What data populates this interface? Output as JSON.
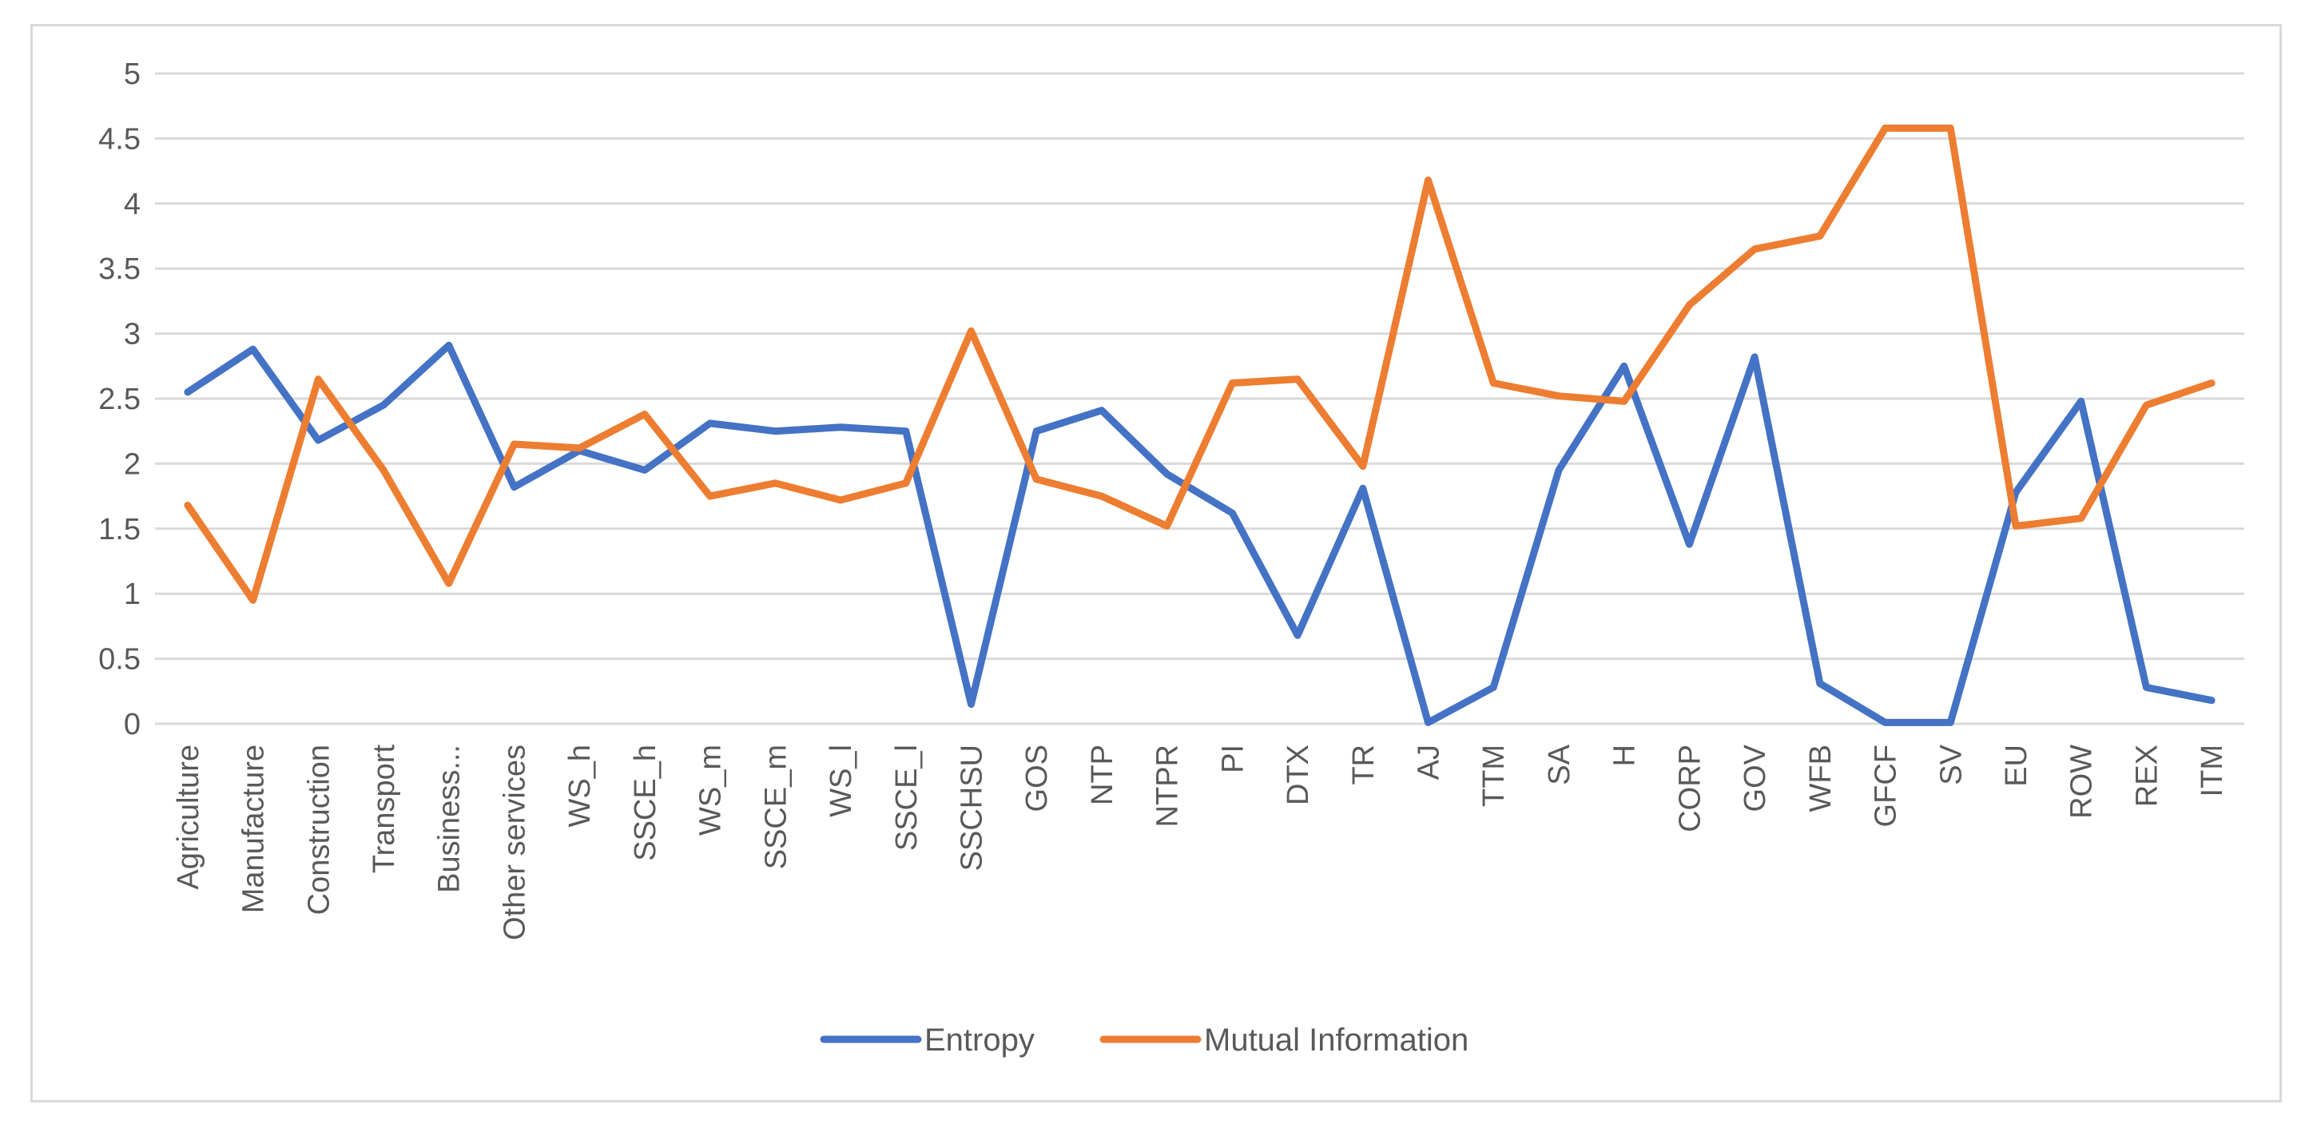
{
  "chart_data": {
    "type": "line",
    "title": "",
    "xlabel": "",
    "ylabel": "",
    "ylim": [
      0,
      5
    ],
    "yticks": [
      "0",
      "0.5",
      "1",
      "1.5",
      "2",
      "2.5",
      "3",
      "3.5",
      "4",
      "4.5",
      "5"
    ],
    "ytick_values": [
      0,
      0.5,
      1,
      1.5,
      2,
      2.5,
      3,
      3.5,
      4,
      4.5,
      5
    ],
    "grid": true,
    "legend_position": "bottom",
    "categories": [
      "Agriculture",
      "Manufacture",
      "Construction",
      "Transport",
      "Business...",
      "Other services",
      "WS_h",
      "SSCE_h",
      "WS_m",
      "SSCE_m",
      "WS_l",
      "SSCE_l",
      "SSCHSU",
      "GOS",
      "NTP",
      "NTPR",
      "PI",
      "DTX",
      "TR",
      "AJ",
      "TTM",
      "SA",
      "H",
      "CORP",
      "GOV",
      "WFB",
      "GFCF",
      "SV",
      "EU",
      "ROW",
      "REX",
      "ITM"
    ],
    "series": [
      {
        "name": "Entropy",
        "color": "#4472c4",
        "values": [
          2.55,
          2.88,
          2.18,
          2.45,
          2.91,
          1.82,
          2.1,
          1.95,
          2.31,
          2.25,
          2.28,
          2.25,
          0.15,
          2.25,
          2.41,
          1.92,
          1.62,
          0.68,
          1.81,
          0.01,
          0.28,
          1.95,
          2.75,
          1.38,
          2.82,
          0.31,
          0.01,
          0.01,
          1.78,
          2.48,
          0.28,
          0.18
        ]
      },
      {
        "name": "Mutual Information",
        "color": "#ed7d31",
        "values": [
          1.68,
          0.95,
          2.65,
          1.95,
          1.08,
          2.15,
          2.12,
          2.38,
          1.75,
          1.85,
          1.72,
          1.85,
          3.02,
          1.88,
          1.75,
          1.52,
          2.62,
          2.65,
          1.98,
          4.18,
          2.62,
          2.52,
          2.48,
          3.22,
          3.65,
          3.75,
          4.58,
          4.58,
          1.52,
          1.58,
          2.45,
          2.62
        ]
      }
    ]
  }
}
